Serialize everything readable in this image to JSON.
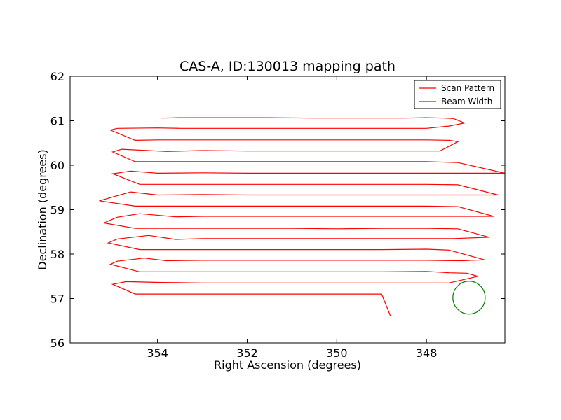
{
  "chart_data": {
    "type": "line",
    "title": "CAS-A, ID:130013 mapping path",
    "xlabel": "Right Ascension (degrees)",
    "ylabel": "Declination (degrees)",
    "xlim": [
      355.95,
      346.25
    ],
    "ylim": [
      56,
      62
    ],
    "x_reversed": true,
    "xticks": [
      "354",
      "352",
      "350",
      "348"
    ],
    "xtick_values": [
      354,
      352,
      350,
      348
    ],
    "yticks": [
      "56",
      "57",
      "58",
      "59",
      "60",
      "61",
      "62"
    ],
    "ytick_values": [
      56,
      57,
      58,
      59,
      60,
      61,
      62
    ],
    "grid": false,
    "legend": {
      "placement": "top-right",
      "entries": [
        {
          "label": "Scan Pattern",
          "color": "#ff0000"
        },
        {
          "label": "Beam Width",
          "color": "#008000"
        }
      ]
    },
    "series": [
      {
        "name": "Scan Pattern",
        "color": "#ff0000",
        "x": [
          353.9,
          353.5,
          352.5,
          351.5,
          350.5,
          349.5,
          348.5,
          348.0,
          347.6,
          347.4,
          347.15,
          347.5,
          348.0,
          349.0,
          350.0,
          351.0,
          352.0,
          353.0,
          353.5,
          354.0,
          354.9,
          355.05,
          354.5,
          354.0,
          353.0,
          352.0,
          351.0,
          350.0,
          349.0,
          348.0,
          347.5,
          347.3,
          347.7,
          348.0,
          349.0,
          350.0,
          351.0,
          352.0,
          353.0,
          353.8,
          354.8,
          355.0,
          354.5,
          354.0,
          353.0,
          352.0,
          351.0,
          350.0,
          349.0,
          348.0,
          347.3,
          346.25,
          347.0,
          348.0,
          349.0,
          350.0,
          351.0,
          352.0,
          353.0,
          354.0,
          354.6,
          355.0,
          354.4,
          353.6,
          353.0,
          352.0,
          351.0,
          350.0,
          349.0,
          348.0,
          347.3,
          346.4,
          347.3,
          348.0,
          349.0,
          350.0,
          351.0,
          352.0,
          353.0,
          354.0,
          354.6,
          355.3,
          354.5,
          353.6,
          353.0,
          352.0,
          351.0,
          350.0,
          349.0,
          348.0,
          347.3,
          346.5,
          347.3,
          348.0,
          349.0,
          350.0,
          351.0,
          352.0,
          353.0,
          353.6,
          354.4,
          354.9,
          355.2,
          354.5,
          354.0,
          353.0,
          352.0,
          351.0,
          350.0,
          349.0,
          348.0,
          347.3,
          346.6,
          347.4,
          348.0,
          349.0,
          350.0,
          351.0,
          352.0,
          353.0,
          353.6,
          354.2,
          354.9,
          355.1,
          354.4,
          354.0,
          353.0,
          352.0,
          351.0,
          350.0,
          349.0,
          348.0,
          347.5,
          346.7,
          347.0,
          347.2,
          348.0,
          349.0,
          350.0,
          351.0,
          352.0,
          353.0,
          353.8,
          354.3,
          354.9,
          355.05,
          354.4,
          354.0,
          353.0,
          352.0,
          351.0,
          350.0,
          349.0,
          348.0,
          347.5,
          347.1,
          346.85,
          347.5,
          348.0,
          349.0,
          350.0,
          351.0,
          352.0,
          353.0,
          353.9,
          354.7,
          355.0,
          354.5,
          354.0,
          353.0,
          352.0,
          351.0,
          350.0,
          349.0,
          348.8
        ],
        "y": [
          61.06,
          61.07,
          61.07,
          61.07,
          61.06,
          61.06,
          61.06,
          61.07,
          61.06,
          61.05,
          60.95,
          60.88,
          60.83,
          60.83,
          60.83,
          60.83,
          60.83,
          60.83,
          60.83,
          60.84,
          60.83,
          60.79,
          60.56,
          60.57,
          60.57,
          60.57,
          60.57,
          60.57,
          60.57,
          60.57,
          60.56,
          60.53,
          60.32,
          60.32,
          60.32,
          60.32,
          60.32,
          60.32,
          60.33,
          60.31,
          60.36,
          60.3,
          60.08,
          60.08,
          60.08,
          60.08,
          60.08,
          60.08,
          60.08,
          60.08,
          60.06,
          59.82,
          59.82,
          59.82,
          59.82,
          59.82,
          59.82,
          59.82,
          59.83,
          59.82,
          59.87,
          59.81,
          59.57,
          59.57,
          59.57,
          59.57,
          59.57,
          59.57,
          59.57,
          59.57,
          59.56,
          59.33,
          59.33,
          59.33,
          59.33,
          59.33,
          59.33,
          59.33,
          59.34,
          59.33,
          59.4,
          59.2,
          59.08,
          59.08,
          59.08,
          59.08,
          59.08,
          59.08,
          59.08,
          59.08,
          59.07,
          58.85,
          58.85,
          58.85,
          58.85,
          58.85,
          58.85,
          58.85,
          58.85,
          58.84,
          58.91,
          58.83,
          58.7,
          58.58,
          58.58,
          58.58,
          58.58,
          58.58,
          58.57,
          58.58,
          58.58,
          58.57,
          58.38,
          58.35,
          58.35,
          58.35,
          58.35,
          58.35,
          58.35,
          58.35,
          58.33,
          58.42,
          58.34,
          58.25,
          58.1,
          58.1,
          58.1,
          58.1,
          58.1,
          58.1,
          58.1,
          58.11,
          58.09,
          57.87,
          57.86,
          57.85,
          57.86,
          57.86,
          57.86,
          57.86,
          57.86,
          57.86,
          57.85,
          57.91,
          57.84,
          57.77,
          57.6,
          57.6,
          57.6,
          57.6,
          57.6,
          57.6,
          57.6,
          57.61,
          57.58,
          57.57,
          57.5,
          57.35,
          57.35,
          57.35,
          57.35,
          57.35,
          57.35,
          57.35,
          57.36,
          57.38,
          57.32,
          57.1,
          57.1,
          57.1,
          57.1,
          57.1,
          57.1,
          57.1,
          56.6
        ]
      },
      {
        "name": "Beam Width",
        "color": "#008000",
        "shape": "circle",
        "center": [
          347.05,
          57.02
        ],
        "radius_x_deg": 0.36,
        "radius_y_deg": 0.37
      }
    ]
  }
}
